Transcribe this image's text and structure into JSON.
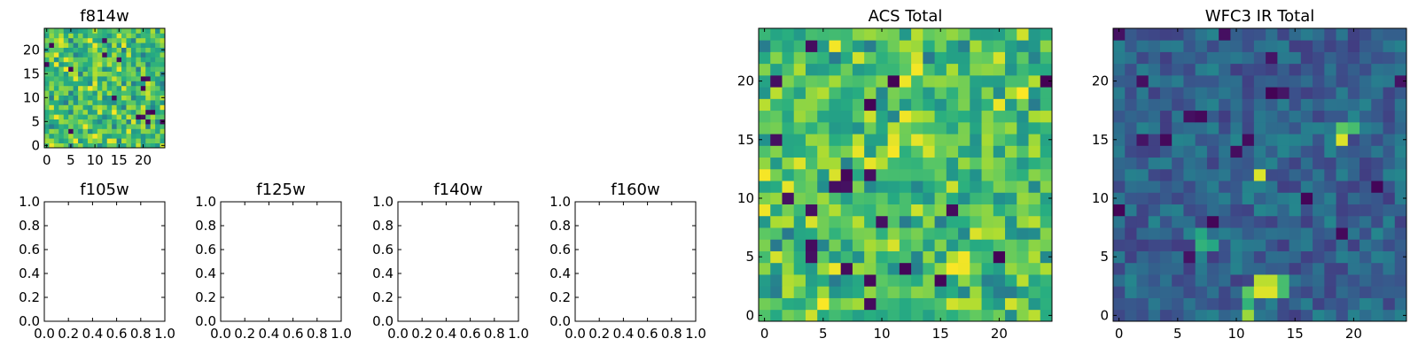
{
  "chart_data": [
    {
      "type": "heatmap",
      "title": "f814w",
      "x_ticks": [
        "0",
        "5",
        "10",
        "15",
        "20"
      ],
      "y_ticks": [
        "0",
        "5",
        "10",
        "15",
        "20"
      ],
      "xlim": [
        -0.5,
        24.5
      ],
      "ylim": [
        -0.5,
        24.5
      ],
      "colormap": "viridis",
      "grid": false
    },
    {
      "type": "heatmap",
      "title": "f105w",
      "x_ticks": [
        "0.0",
        "0.2",
        "0.4",
        "0.6",
        "0.8",
        "1.0"
      ],
      "y_ticks": [
        "0.0",
        "0.2",
        "0.4",
        "0.6",
        "0.8",
        "1.0"
      ],
      "xlim": [
        0,
        1
      ],
      "ylim": [
        0,
        1
      ],
      "empty": true
    },
    {
      "type": "heatmap",
      "title": "f125w",
      "x_ticks": [
        "0.0",
        "0.2",
        "0.4",
        "0.6",
        "0.8",
        "1.0"
      ],
      "y_ticks": [
        "0.0",
        "0.2",
        "0.4",
        "0.6",
        "0.8",
        "1.0"
      ],
      "xlim": [
        0,
        1
      ],
      "ylim": [
        0,
        1
      ],
      "empty": true
    },
    {
      "type": "heatmap",
      "title": "f140w",
      "x_ticks": [
        "0.0",
        "0.2",
        "0.4",
        "0.6",
        "0.8",
        "1.0"
      ],
      "y_ticks": [
        "0.0",
        "0.2",
        "0.4",
        "0.6",
        "0.8",
        "1.0"
      ],
      "xlim": [
        0,
        1
      ],
      "ylim": [
        0,
        1
      ],
      "empty": true
    },
    {
      "type": "heatmap",
      "title": "f160w",
      "x_ticks": [
        "0.0",
        "0.2",
        "0.4",
        "0.6",
        "0.8",
        "1.0"
      ],
      "y_ticks": [
        "0.0",
        "0.2",
        "0.4",
        "0.6",
        "0.8",
        "1.0"
      ],
      "xlim": [
        0,
        1
      ],
      "ylim": [
        0,
        1
      ],
      "empty": true
    },
    {
      "type": "heatmap",
      "title": "ACS Total",
      "x_ticks": [
        "0",
        "5",
        "10",
        "15",
        "20"
      ],
      "y_ticks": [
        "0",
        "5",
        "10",
        "15",
        "20"
      ],
      "xlim": [
        -0.5,
        24.5
      ],
      "ylim": [
        -0.5,
        24.5
      ],
      "colormap": "viridis",
      "grid": false
    },
    {
      "type": "heatmap",
      "title": "WFC3 IR Total",
      "x_ticks": [
        "0",
        "5",
        "10",
        "15",
        "20"
      ],
      "y_ticks": [
        "0",
        "5",
        "10",
        "15",
        "20"
      ],
      "xlim": [
        -0.5,
        24.5
      ],
      "ylim": [
        -0.5,
        24.5
      ],
      "colormap": "viridis",
      "grid": false,
      "bright_spots": [
        {
          "x": 12,
          "y": 2,
          "level": 0.95
        },
        {
          "x": 13,
          "y": 2,
          "level": 0.95
        },
        {
          "x": 12,
          "y": 3,
          "level": 0.9
        },
        {
          "x": 13,
          "y": 3,
          "level": 0.9
        },
        {
          "x": 11,
          "y": 2,
          "level": 0.75
        },
        {
          "x": 14,
          "y": 2,
          "level": 0.7
        },
        {
          "x": 14,
          "y": 3,
          "level": 0.7
        },
        {
          "x": 11,
          "y": 1,
          "level": 0.65
        },
        {
          "x": 11,
          "y": 0,
          "level": 0.85
        },
        {
          "x": 19,
          "y": 15,
          "level": 0.95
        },
        {
          "x": 19,
          "y": 16,
          "level": 0.75
        },
        {
          "x": 20,
          "y": 16,
          "level": 0.7
        },
        {
          "x": 12,
          "y": 12,
          "level": 0.95
        },
        {
          "x": 7,
          "y": 6,
          "level": 0.65
        },
        {
          "x": 8,
          "y": 6,
          "level": 0.6
        },
        {
          "x": 7,
          "y": 7,
          "level": 0.6
        }
      ]
    }
  ]
}
